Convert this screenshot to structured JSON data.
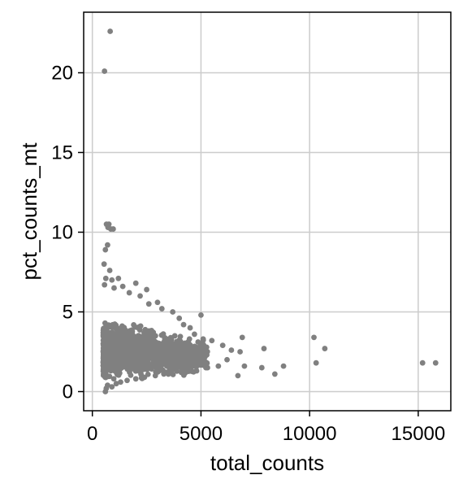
{
  "chart_data": {
    "type": "scatter",
    "title": "",
    "xlabel": "total_counts",
    "ylabel": "pct_counts_mt",
    "xlim": [
      -400,
      16500
    ],
    "ylim": [
      -1.2,
      23.8
    ],
    "xticks": [
      0,
      5000,
      10000,
      15000
    ],
    "xtick_labels": [
      "0",
      "5000",
      "10000",
      "15000"
    ],
    "yticks": [
      0,
      5,
      10,
      15,
      20
    ],
    "ytick_labels": [
      "0",
      "5",
      "10",
      "15",
      "20"
    ],
    "grid": true,
    "legend": "none",
    "marker_color": "#808080",
    "grid_color": "#cccccc",
    "series": [
      {
        "values": [
          {
            "x": 820,
            "y": 22.6
          },
          {
            "x": 560,
            "y": 20.1
          },
          {
            "x": 650,
            "y": 10.5
          },
          {
            "x": 760,
            "y": 10.5
          },
          {
            "x": 720,
            "y": 10.3
          },
          {
            "x": 850,
            "y": 10.2
          },
          {
            "x": 960,
            "y": 10.2
          },
          {
            "x": 700,
            "y": 9.2
          },
          {
            "x": 600,
            "y": 8.9
          },
          {
            "x": 540,
            "y": 8.0
          },
          {
            "x": 800,
            "y": 7.6
          },
          {
            "x": 620,
            "y": 7.1
          },
          {
            "x": 900,
            "y": 7.0
          },
          {
            "x": 1200,
            "y": 7.1
          },
          {
            "x": 560,
            "y": 6.7
          },
          {
            "x": 1000,
            "y": 6.5
          },
          {
            "x": 1400,
            "y": 6.6
          },
          {
            "x": 2000,
            "y": 6.8
          },
          {
            "x": 2500,
            "y": 6.4
          },
          {
            "x": 1700,
            "y": 6.2
          },
          {
            "x": 2200,
            "y": 6.0
          },
          {
            "x": 3000,
            "y": 5.6
          },
          {
            "x": 2600,
            "y": 5.5
          },
          {
            "x": 3200,
            "y": 5.2
          },
          {
            "x": 3700,
            "y": 5.0
          },
          {
            "x": 4000,
            "y": 4.6
          },
          {
            "x": 4200,
            "y": 4.2
          },
          {
            "x": 5000,
            "y": 4.8
          },
          {
            "x": 4500,
            "y": 4.0
          },
          {
            "x": 4700,
            "y": 3.6
          },
          {
            "x": 5100,
            "y": 3.3
          },
          {
            "x": 5500,
            "y": 3.2
          },
          {
            "x": 6000,
            "y": 2.9
          },
          {
            "x": 6400,
            "y": 2.6
          },
          {
            "x": 6900,
            "y": 3.4
          },
          {
            "x": 6800,
            "y": 2.5
          },
          {
            "x": 7000,
            "y": 1.6
          },
          {
            "x": 6700,
            "y": 1.0
          },
          {
            "x": 6200,
            "y": 2.0
          },
          {
            "x": 5800,
            "y": 1.6
          },
          {
            "x": 7900,
            "y": 2.7
          },
          {
            "x": 7800,
            "y": 1.5
          },
          {
            "x": 8400,
            "y": 1.1
          },
          {
            "x": 8800,
            "y": 1.6
          },
          {
            "x": 10200,
            "y": 3.4
          },
          {
            "x": 10700,
            "y": 2.7
          },
          {
            "x": 10300,
            "y": 1.8
          },
          {
            "x": 15200,
            "y": 1.8
          },
          {
            "x": 15800,
            "y": 1.8
          },
          {
            "x": 600,
            "y": 0.0
          },
          {
            "x": 640,
            "y": 0.2
          },
          {
            "x": 700,
            "y": 0.4
          },
          {
            "x": 900,
            "y": 0.3
          },
          {
            "x": 1100,
            "y": 0.5
          },
          {
            "x": 1300,
            "y": 0.6
          },
          {
            "x": 1600,
            "y": 0.7
          },
          {
            "x": 2000,
            "y": 0.8
          },
          {
            "x": 2400,
            "y": 0.9
          },
          {
            "x": 2900,
            "y": 1.0
          },
          {
            "x": 3500,
            "y": 1.1
          },
          {
            "x": 4100,
            "y": 1.2
          },
          {
            "x": 4800,
            "y": 1.3
          },
          {
            "x": 5300,
            "y": 1.5
          }
        ]
      }
    ],
    "bulk_cloud": {
      "count": 1500,
      "x_range": [
        500,
        5300
      ],
      "y_range": [
        0.1,
        6.0
      ]
    }
  }
}
